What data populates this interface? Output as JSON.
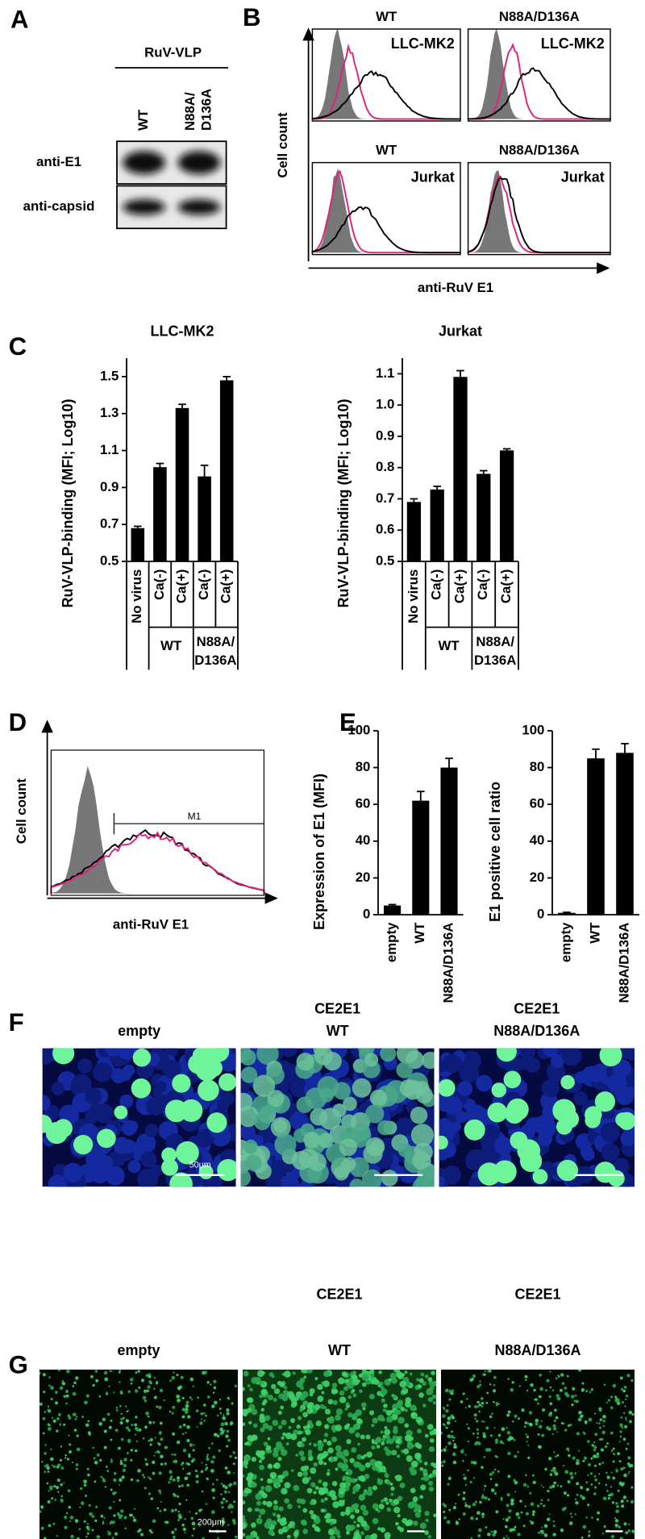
{
  "panel_labels": [
    "A",
    "B",
    "C",
    "D",
    "E",
    "F",
    "G"
  ],
  "blot": {
    "header": "RuV-VLP",
    "lanes": [
      [
        "WT"
      ],
      [
        "N88A/",
        "D136A"
      ]
    ],
    "rows": [
      "anti-E1",
      "anti-capsid"
    ]
  },
  "flow_b": {
    "y_label": "Cell count",
    "x_label": "anti-RuV E1",
    "plots": [
      {
        "variant": "WT",
        "cell": "LLC-MK2"
      },
      {
        "variant": "N88A/D136A",
        "cell": "LLC-MK2"
      },
      {
        "variant": "WT",
        "cell": "Jurkat"
      },
      {
        "variant": "N88A/D136A",
        "cell": "Jurkat"
      }
    ]
  },
  "flow_d": {
    "y_label": "Cell count",
    "x_label": "anti-RuV E1",
    "gate": "M1"
  },
  "chart_data": [
    {
      "type": "bar",
      "title": "LLC-MK2",
      "y_label": "RuV-VLP-binding (MFI; Log10)",
      "categories": [
        "No virus",
        "Ca(-)",
        "Ca(+)",
        "Ca(-)",
        "Ca(+)"
      ],
      "group_labels": [
        [
          "WT"
        ],
        [
          "N88A/",
          "D136A"
        ]
      ],
      "values": [
        0.68,
        1.01,
        1.33,
        0.96,
        1.48
      ],
      "errors": [
        0.01,
        0.02,
        0.02,
        0.06,
        0.02
      ],
      "color": "#000000",
      "ylim": [
        0.5,
        1.6
      ],
      "yticks": [
        0.5,
        0.7,
        0.9,
        1.1,
        1.3,
        1.5
      ]
    },
    {
      "type": "bar",
      "title": "Jurkat",
      "y_label": "RuV-VLP-binding (MFI; Log10)",
      "categories": [
        "No virus",
        "Ca(-)",
        "Ca(+)",
        "Ca(-)",
        "Ca(+)"
      ],
      "group_labels": [
        [
          "WT"
        ],
        [
          "N88A/",
          "D136A"
        ]
      ],
      "values": [
        0.69,
        0.73,
        1.09,
        0.78,
        0.855
      ],
      "errors": [
        0.01,
        0.01,
        0.02,
        0.01,
        0.005
      ],
      "color": "#000000",
      "ylim": [
        0.5,
        1.15
      ],
      "yticks": [
        0.5,
        0.6,
        0.7,
        0.8,
        0.9,
        {
          "value": 1,
          "label": "1.0"
        },
        1.1
      ]
    },
    {
      "type": "bar",
      "y_label": "Expression of E1 (MFI)",
      "categories": [
        "empty",
        "WT",
        "N88A/D136A"
      ],
      "values": [
        5,
        62,
        80
      ],
      "errors": [
        0.5,
        5,
        5
      ],
      "color": "#000000",
      "ylim": [
        0,
        100
      ],
      "yticks": [
        0,
        20,
        40,
        60,
        80,
        100
      ]
    },
    {
      "type": "bar",
      "y_label": "E1 positive cell ratio",
      "categories": [
        "empty",
        "WT",
        "N88A/D136A"
      ],
      "values": [
        1,
        85,
        88
      ],
      "errors": [
        0.3,
        5,
        5
      ],
      "color": "#000000",
      "ylim": [
        0,
        100
      ],
      "yticks": [
        0,
        20,
        40,
        60,
        80,
        100
      ]
    }
  ],
  "images_f": {
    "titles": [
      [
        "empty"
      ],
      [
        "CE2E1",
        "WT"
      ],
      [
        "CE2E1",
        "N88A/D136A"
      ]
    ],
    "scale_bar": "50μm"
  },
  "images_g": {
    "titles": [
      [
        "empty"
      ],
      [
        "CE2E1",
        "WT"
      ],
      [
        "CE2E1",
        "N88A/D136A"
      ]
    ],
    "scale_bar": "200μm"
  }
}
